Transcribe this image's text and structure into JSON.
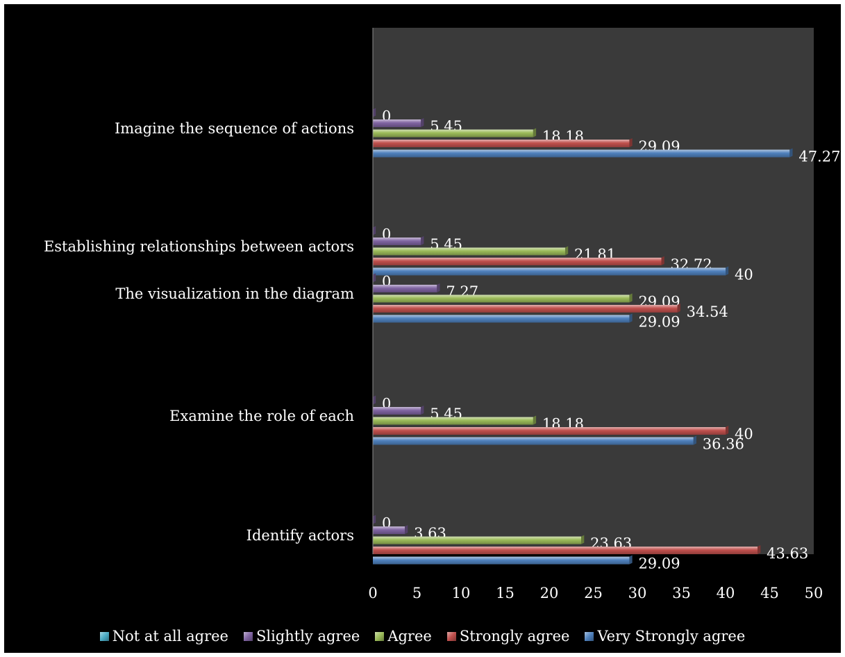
{
  "chart_data": {
    "type": "bar",
    "orientation": "horizontal",
    "title": "",
    "xlabel": "",
    "ylabel": "",
    "xlim": [
      0,
      50
    ],
    "x_ticks": [
      "0",
      "5",
      "10",
      "15",
      "20",
      "25",
      "30",
      "35",
      "40",
      "45",
      "50"
    ],
    "grid": false,
    "legend_position": "bottom",
    "categories": [
      "Imagine the sequence of actions",
      "Establishing relationships between actors",
      "The visualization in the diagram",
      "Examine the role of each",
      "Identify actors"
    ],
    "series": [
      {
        "name": "Not at all agree",
        "color": "#4bacc6",
        "values": [
          0,
          0,
          0,
          0,
          0
        ],
        "labels": [
          "",
          "",
          "",
          "",
          ""
        ]
      },
      {
        "name": "Slightly agree",
        "color": "#8064a2",
        "values": [
          0,
          0,
          0,
          0,
          0
        ],
        "labels": [
          "0",
          "0",
          "0",
          "0",
          "0"
        ]
      },
      {
        "name": "Slightly agree",
        "color": "#8064a2",
        "values": [
          5.45,
          5.45,
          7.27,
          5.45,
          3.63
        ],
        "labels": [
          "5.45",
          "5.45",
          "7.27",
          "5.45",
          "3.63"
        ]
      },
      {
        "name": "Agree",
        "color": "#9bbb59",
        "values": [
          18.18,
          21.81,
          29.09,
          18.18,
          23.63
        ],
        "labels": [
          "18.18",
          "21.81",
          "29.09",
          "18.18",
          "23.63"
        ]
      },
      {
        "name": "Strongly agree",
        "color": "#c0504d",
        "values": [
          29.09,
          32.72,
          34.54,
          40,
          43.63
        ],
        "labels": [
          "29.09",
          "32.72",
          "34.54",
          "40",
          "43.63"
        ]
      },
      {
        "name": "Very Strongly agree",
        "color": "#4f81bd",
        "values": [
          47.27,
          40,
          29.09,
          36.36,
          29.09
        ],
        "labels": [
          "47.27",
          "40",
          "29.09",
          "36.36",
          "29.09"
        ]
      }
    ]
  },
  "legend": [
    {
      "label": "Not at all agree",
      "color": "#4bacc6"
    },
    {
      "label": "Slightly agree",
      "color": "#8064a2"
    },
    {
      "label": "Agree",
      "color": "#9bbb59"
    },
    {
      "label": "Strongly agree",
      "color": "#c0504d"
    },
    {
      "label": "Very Strongly agree",
      "color": "#4f81bd"
    }
  ]
}
